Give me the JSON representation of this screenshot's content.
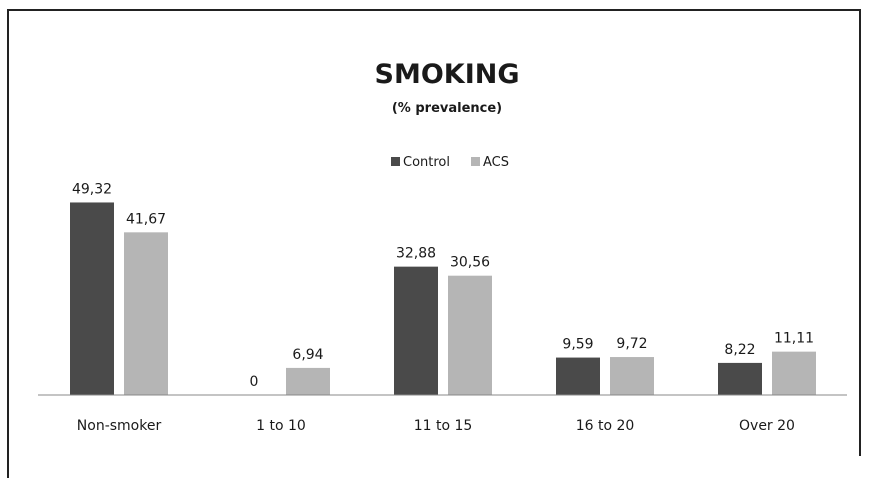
{
  "chart_data": {
    "type": "bar",
    "title": "SMOKING",
    "subtitle": "(% prevalence)",
    "categories": [
      "Non-smoker",
      "1 to 10",
      "11 to 15",
      "16 to 20",
      "Over 20"
    ],
    "series": [
      {
        "name": "Control",
        "values": [
          49.32,
          0,
          32.88,
          9.59,
          8.22
        ],
        "labels": [
          "49,32",
          "0",
          "32,88",
          "9,59",
          "8,22"
        ],
        "color": "#4a4a4a"
      },
      {
        "name": "ACS",
        "values": [
          41.67,
          6.94,
          30.56,
          9.72,
          11.11
        ],
        "labels": [
          "41,67",
          "6,94",
          "30,56",
          "9,72",
          "11,11"
        ],
        "color": "#b5b5b5"
      }
    ],
    "ylim": [
      0,
      52
    ],
    "grid": false,
    "legend_position": "top-center"
  }
}
